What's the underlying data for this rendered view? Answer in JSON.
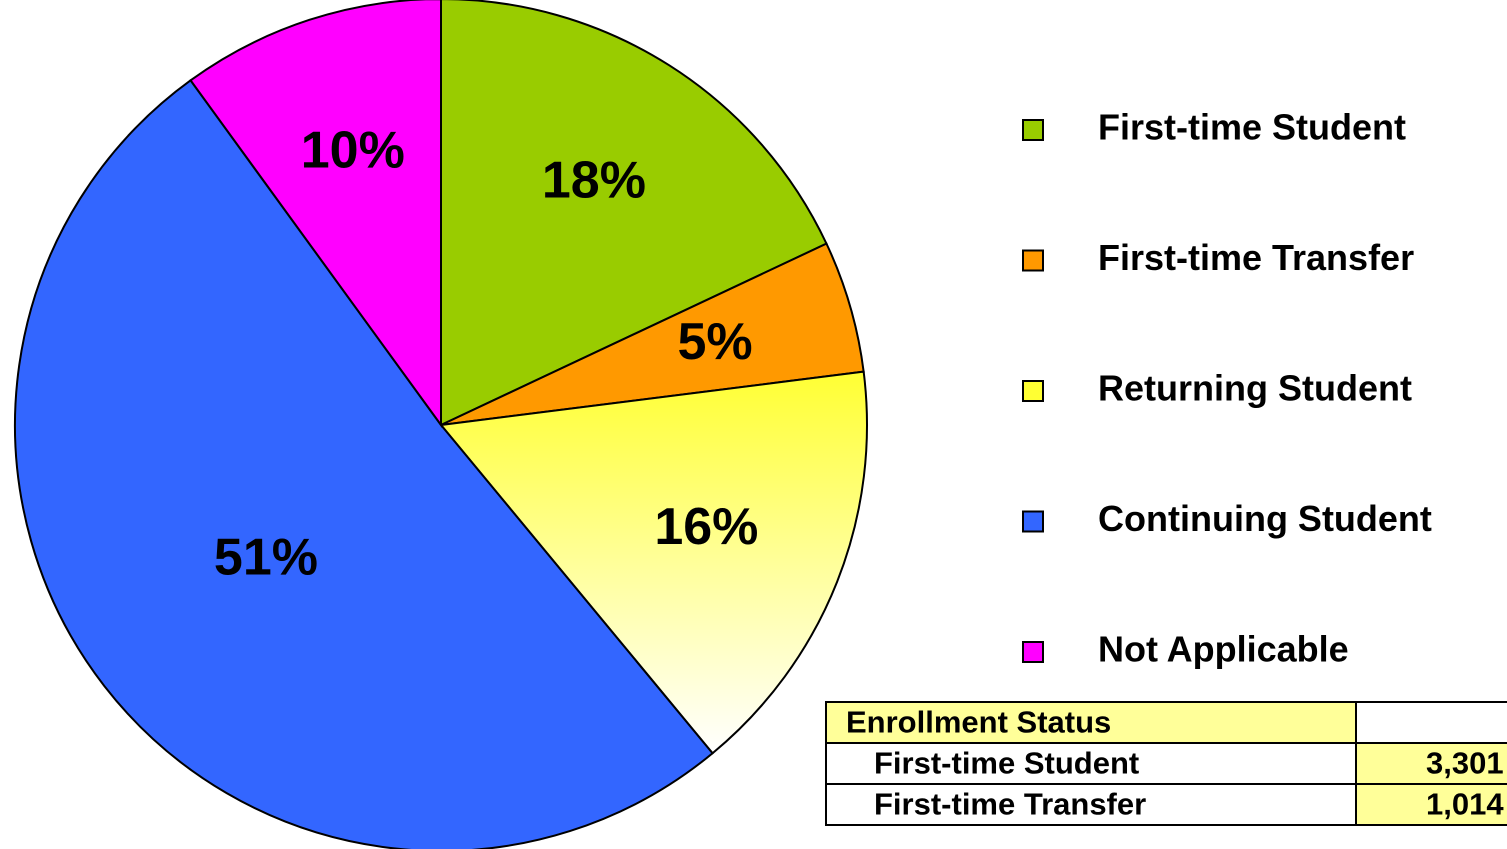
{
  "chart_data": {
    "type": "pie",
    "categories": [
      "First-time Student",
      "First-time Transfer",
      "Returning Student",
      "Continuing Student",
      "Not Applicable"
    ],
    "values": [
      18,
      5,
      16,
      51,
      10
    ],
    "value_labels": [
      "18%",
      "5%",
      "16%",
      "51%",
      "10%"
    ],
    "colors": [
      "#99cc00",
      "#ff9900",
      "#ffff33",
      "#3366ff",
      "#ff00ff"
    ],
    "legend": "right"
  },
  "table": {
    "header": [
      "Enrollment Status",
      ""
    ],
    "rows": [
      [
        "First-time Student",
        "3,301"
      ],
      [
        "First-time Transfer",
        "1,014"
      ]
    ]
  }
}
